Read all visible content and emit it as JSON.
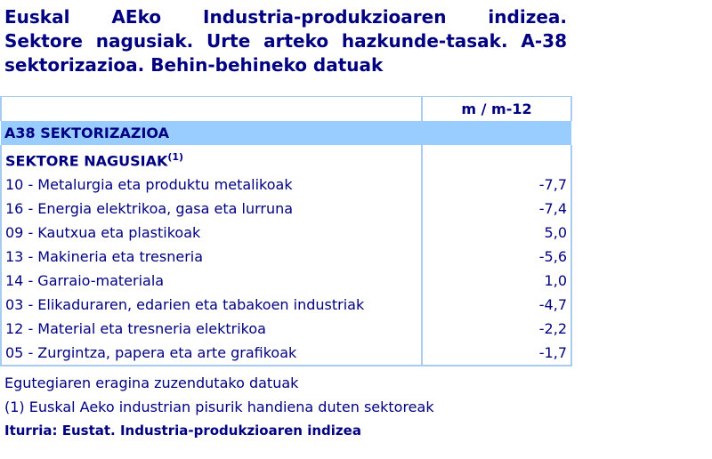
{
  "title_lines": [
    "Euskal AEko Industria-produkzioaren indizea.",
    "Sektore nagusiak. Urte arteko hazkunde-tasak. A-38",
    "sektorizazioa. Behin-behineko datuak"
  ],
  "table": {
    "column_header": "m / m-12",
    "band": "A38 SEKTORIZAZIOA",
    "section": "SEKTORE NAGUSIAK",
    "section_note": "(1)",
    "rows": [
      {
        "label": "10 - Metalurgia eta produktu metalikoak",
        "value": "-7,7"
      },
      {
        "label": "16 - Energia elektrikoa, gasa eta lurruna",
        "value": "-7,4"
      },
      {
        "label": "09 - Kautxua eta plastikoak",
        "value": "5,0"
      },
      {
        "label": "13 - Makineria eta tresneria",
        "value": "-5,6"
      },
      {
        "label": "14 - Garraio-materiala",
        "value": "1,0"
      },
      {
        "label": "03 - Elikaduraren, edarien eta tabakoen industriak",
        "value": "-4,7"
      },
      {
        "label": "12 - Material eta tresneria elektrikoa",
        "value": "-2,2"
      },
      {
        "label": "05 - Zurgintza, papera eta arte grafikoak",
        "value": "-1,7"
      }
    ]
  },
  "notes": [
    "Egutegiaren eragina zuzendutako datuak",
    "(1) Euskal Aeko industrian pisurik handiena duten sektoreak"
  ],
  "source": "Iturria: Eustat. Industria-produkzioaren indizea"
}
